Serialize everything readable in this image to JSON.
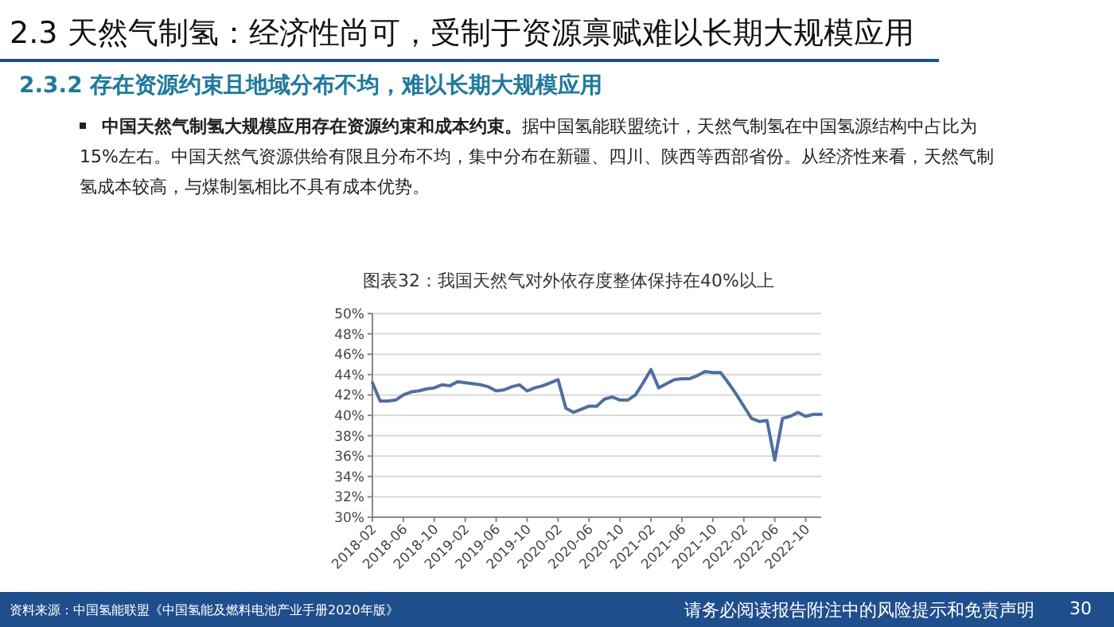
{
  "chart_data": {
    "type": "line",
    "title": "图表32：我国天然气对外依存度整体保持在40%以上",
    "annotations": [
      "2.3 天然气制氢：经济性尚可，受制于资源禀赋难以长期大规模应用",
      "2.3.2 存在资源约束且地域分布不均，难以长期大规模应用",
      "中国天然气制氢大规模应用存在资源约束和成本约束。",
      "据中国氢能联盟统计，天然气制氢在中国氢源结构中占比为15%左右。中国天然气资源供给有限且分布不均，集中分布在新疆、四川、陕西等西部省份。从经济性来看，天然气制氢成本较高，与煤制氢相比不具有成本优势。",
      "资料来源：中国氢能联盟《中国氢能及燃料电池产业手册2020年版》",
      "请务必阅读报告附注中的风险提示和免责声明",
      "30"
    ],
    "categories": [
      "2018-02",
      null,
      null,
      null,
      "2018-06",
      null,
      null,
      null,
      "2018-10",
      null,
      null,
      null,
      "2019-02",
      null,
      null,
      null,
      "2019-06",
      null,
      null,
      null,
      "2019-10",
      null,
      null,
      null,
      "2020-02",
      null,
      null,
      null,
      "2020-06",
      null,
      null,
      null,
      "2020-10",
      null,
      null,
      null,
      "2021-02",
      null,
      null,
      null,
      "2021-06",
      null,
      null,
      null,
      "2021-10",
      null,
      null,
      null,
      "2022-02",
      null,
      null,
      null,
      "2022-06",
      null,
      null,
      null,
      "2022-10",
      null,
      null
    ],
    "series": [
      {
        "color": "#4f6f9f",
        "values": [
          43.2,
          41.4,
          41.4,
          41.5,
          42.0,
          42.3,
          42.4,
          42.6,
          42.7,
          43.0,
          42.9,
          43.3,
          43.2,
          43.1,
          43.0,
          42.8,
          42.4,
          42.5,
          42.8,
          43.0,
          42.4,
          42.7,
          42.9,
          43.2,
          43.5,
          40.7,
          40.3,
          40.6,
          40.9,
          40.9,
          41.6,
          41.8,
          41.5,
          41.5,
          42.0,
          43.2,
          44.5,
          42.7,
          43.1,
          43.5,
          43.6,
          43.6,
          43.9,
          44.3,
          44.2,
          44.2,
          43.2,
          42.1,
          40.9,
          39.7,
          39.4,
          39.5,
          35.6,
          39.7,
          39.9,
          40.3,
          39.9,
          40.1,
          40.1
        ]
      }
    ],
    "ylim": [
      30,
      50
    ],
    "yticks": [
      {
        "value": 30,
        "label": "30%"
      },
      {
        "value": 32,
        "label": "32%"
      },
      {
        "value": 34,
        "label": "34%"
      },
      {
        "value": 36,
        "label": "36%"
      },
      {
        "value": 38,
        "label": "38%"
      },
      {
        "value": 40,
        "label": "40%"
      },
      {
        "value": 42,
        "label": "42%"
      },
      {
        "value": 44,
        "label": "44%"
      },
      {
        "value": 46,
        "label": "46%"
      },
      {
        "value": 48,
        "label": "48%"
      },
      {
        "value": 50,
        "label": "50%"
      }
    ],
    "grid": "y"
  }
}
